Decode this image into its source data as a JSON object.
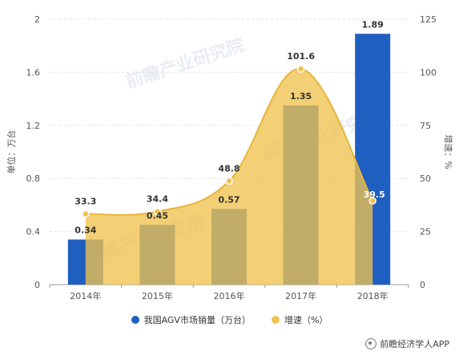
{
  "chart_data": {
    "type": "bar",
    "categories": [
      "2014年",
      "2015年",
      "2016年",
      "2017年",
      "2018年"
    ],
    "series": [
      {
        "name": "我国AGV市场销量（万台）",
        "kind": "bar",
        "axis": "left",
        "color": "#1f5fbf",
        "values": [
          0.34,
          0.45,
          0.57,
          1.35,
          1.89
        ],
        "labels": [
          "0.34",
          "0.45",
          "0.57",
          "1.35",
          "1.89"
        ]
      },
      {
        "name": "增速（%）",
        "kind": "area",
        "axis": "right",
        "color": "#f0c24f",
        "values": [
          33.3,
          34.4,
          48.8,
          101.6,
          39.5
        ],
        "labels": [
          "33.3",
          "34.4",
          "48.8",
          "101.6",
          "39.5"
        ]
      }
    ],
    "ylabel": "单位：万台",
    "ylabel_right": "增速：%",
    "ylim": [
      0,
      2
    ],
    "yticks": [
      "0",
      "0.4",
      "0.8",
      "1.2",
      "1.6",
      "2"
    ],
    "ylim_right": [
      0,
      125
    ],
    "yticks_right": [
      "0",
      "25",
      "50",
      "75",
      "100",
      "125"
    ],
    "grid": true,
    "legend_position": "bottom"
  },
  "watermark": "前瞻产业研究院",
  "source": "前瞻经济学人APP"
}
